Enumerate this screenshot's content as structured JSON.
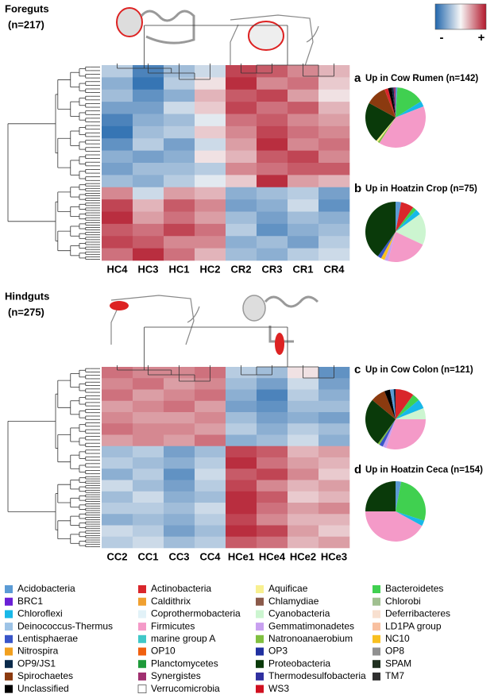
{
  "chart_data": [
    {
      "type": "heatmap",
      "title": "Foreguts",
      "subtitle": "(n=217)",
      "categories": [
        "HC4",
        "HC3",
        "HC1",
        "HC2",
        "CR2",
        "CR3",
        "CR1",
        "CR4"
      ],
      "zlim": [
        -1,
        1
      ],
      "values": [
        [
          -0.3,
          -0.8,
          -0.4,
          -0.2,
          0.8,
          0.7,
          0.5,
          0.3
        ],
        [
          -0.5,
          -0.9,
          -0.3,
          0.1,
          0.9,
          0.5,
          0.6,
          0.2
        ],
        [
          -0.4,
          -0.7,
          -0.5,
          0.3,
          0.7,
          0.8,
          0.4,
          0.1
        ],
        [
          -0.6,
          -0.6,
          -0.2,
          0.2,
          0.8,
          0.6,
          0.7,
          0.3
        ],
        [
          -0.8,
          -0.5,
          -0.4,
          -0.1,
          0.6,
          0.7,
          0.5,
          0.4
        ],
        [
          -0.9,
          -0.4,
          -0.3,
          0.2,
          0.5,
          0.8,
          0.6,
          0.5
        ],
        [
          -0.7,
          -0.3,
          -0.6,
          -0.2,
          0.4,
          0.9,
          0.5,
          0.6
        ],
        [
          -0.5,
          -0.6,
          -0.5,
          0.1,
          0.3,
          0.7,
          0.8,
          0.5
        ],
        [
          -0.6,
          -0.4,
          -0.4,
          -0.3,
          0.5,
          0.6,
          0.7,
          0.7
        ],
        [
          -0.4,
          -0.5,
          -0.3,
          -0.1,
          0.2,
          0.9,
          0.4,
          0.3
        ],
        [
          0.5,
          -0.2,
          0.4,
          0.3,
          -0.5,
          -0.4,
          -0.3,
          -0.6
        ],
        [
          0.8,
          0.3,
          0.7,
          0.5,
          -0.6,
          -0.5,
          -0.2,
          -0.7
        ],
        [
          0.9,
          0.4,
          0.6,
          0.4,
          -0.4,
          -0.6,
          -0.4,
          -0.5
        ],
        [
          0.7,
          0.6,
          0.8,
          0.6,
          -0.3,
          -0.7,
          -0.5,
          -0.4
        ],
        [
          0.8,
          0.7,
          0.5,
          0.5,
          -0.5,
          -0.4,
          -0.6,
          -0.3
        ],
        [
          0.6,
          0.9,
          0.6,
          0.3,
          -0.4,
          -0.5,
          -0.3,
          -0.2
        ]
      ]
    },
    {
      "type": "heatmap",
      "title": "Hindguts",
      "subtitle": "(n=275)",
      "categories": [
        "CC2",
        "CC1",
        "CC3",
        "CC4",
        "HCe1",
        "HCe4",
        "HCe2",
        "HCe3"
      ],
      "zlim": [
        -1,
        1
      ],
      "values": [
        [
          0.6,
          0.5,
          0.5,
          0.6,
          -0.3,
          -0.4,
          0.1,
          -0.7
        ],
        [
          0.5,
          0.6,
          0.4,
          0.5,
          -0.4,
          -0.6,
          -0.2,
          -0.6
        ],
        [
          0.6,
          0.4,
          0.5,
          0.6,
          -0.5,
          -0.8,
          -0.3,
          -0.5
        ],
        [
          0.4,
          0.5,
          0.6,
          0.4,
          -0.6,
          -0.7,
          -0.4,
          -0.4
        ],
        [
          0.5,
          0.4,
          0.4,
          0.5,
          -0.4,
          -0.6,
          -0.5,
          -0.6
        ],
        [
          0.6,
          0.5,
          0.5,
          0.4,
          -0.3,
          -0.5,
          -0.3,
          -0.4
        ],
        [
          0.4,
          0.5,
          0.4,
          0.6,
          -0.5,
          -0.4,
          -0.2,
          -0.5
        ],
        [
          -0.4,
          -0.3,
          -0.6,
          -0.4,
          0.8,
          0.7,
          0.3,
          0.4
        ],
        [
          -0.3,
          -0.4,
          -0.5,
          -0.3,
          0.9,
          0.6,
          0.4,
          0.3
        ],
        [
          -0.5,
          -0.3,
          -0.7,
          -0.2,
          0.7,
          0.8,
          0.5,
          0.2
        ],
        [
          -0.2,
          -0.4,
          -0.6,
          -0.3,
          0.8,
          0.5,
          0.3,
          0.4
        ],
        [
          -0.4,
          -0.2,
          -0.5,
          -0.4,
          0.9,
          0.7,
          0.2,
          0.3
        ],
        [
          -0.3,
          -0.3,
          -0.4,
          -0.2,
          0.9,
          0.6,
          0.4,
          0.5
        ],
        [
          -0.5,
          -0.4,
          -0.5,
          -0.3,
          0.8,
          0.5,
          0.3,
          0.3
        ],
        [
          -0.2,
          -0.3,
          -0.6,
          -0.4,
          0.9,
          0.8,
          0.4,
          0.2
        ],
        [
          -0.3,
          -0.2,
          -0.4,
          -0.3,
          0.7,
          0.6,
          0.3,
          0.4
        ]
      ]
    },
    {
      "type": "pie",
      "label": "a",
      "title": "Up in Cow Rumen (n=142)",
      "categories": [
        "Acidobacteria",
        "Bacteroidetes",
        "Chloroflexi",
        "Firmicutes",
        "Natronoanaerobium",
        "Aquificae",
        "Proteobacteria",
        "Spirochaetes",
        "Actinobacteria",
        "Unclassified",
        "OP9/JS1",
        "Synergistes"
      ],
      "values": [
        1,
        15,
        3,
        40,
        1,
        1,
        22,
        11,
        2,
        2,
        1,
        1
      ]
    },
    {
      "type": "pie",
      "label": "b",
      "title": "Up in Hoatzin Crop (n=75)",
      "categories": [
        "Acidobacteria",
        "Actinobacteria",
        "Bacteroidetes",
        "Chloroflexi",
        "Cyanobacteria",
        "Firmicutes",
        "Gemmatimonadetes",
        "NC10",
        "Lentisphaerae",
        "Proteobacteria"
      ],
      "values": [
        3,
        7,
        2,
        3,
        17,
        22,
        2,
        2,
        2,
        40
      ]
    },
    {
      "type": "pie",
      "label": "c",
      "title": "Up in Cow Colon (n=121)",
      "categories": [
        "Actinobacteria",
        "Bacteroidetes",
        "Chloroflexi",
        "Cyanobacteria",
        "Firmicutes",
        "Gemmatimonadetes",
        "Lentisphaerae",
        "Natronoanaerobium",
        "Proteobacteria",
        "Spirochaetes",
        "Unclassified",
        "Acidobacteria",
        "OP9/JS1"
      ],
      "values": [
        10,
        4,
        5,
        6,
        30,
        2,
        2,
        1,
        26,
        8,
        3,
        2,
        1
      ]
    },
    {
      "type": "pie",
      "label": "d",
      "title": "Up in Hoatzin Ceca (n=154)",
      "categories": [
        "Acidobacteria",
        "Bacteroidetes",
        "Chloroflexi",
        "Firmicutes",
        "Proteobacteria"
      ],
      "values": [
        3,
        27,
        3,
        42,
        25
      ]
    }
  ],
  "color_key": {
    "low": "-",
    "high": "+",
    "colors": [
      "#2166ac",
      "#f7f7f7",
      "#b2182b"
    ]
  },
  "legend": {
    "items": [
      {
        "name": "Acidobacteria",
        "color": "#5b9bd5"
      },
      {
        "name": "BRC1",
        "color": "#6a1fd6"
      },
      {
        "name": "Chloroflexi",
        "color": "#18b8e8"
      },
      {
        "name": "Deinococcus-Thermus",
        "color": "#9dc3e6"
      },
      {
        "name": "Lentisphaerae",
        "color": "#3955c8"
      },
      {
        "name": "Nitrospira",
        "color": "#f2a01e"
      },
      {
        "name": "OP9/JS1",
        "color": "#0a2a4a"
      },
      {
        "name": "Spirochaetes",
        "color": "#8b3a0f"
      },
      {
        "name": "Unclassified",
        "color": "#000000"
      },
      {
        "name": "Actinobacteria",
        "color": "#d9262b"
      },
      {
        "name": "Caldithrix",
        "color": "#f0a030"
      },
      {
        "name": "Coprothermobacteria",
        "color": "#e2f2f8"
      },
      {
        "name": "Firmicutes",
        "color": "#f49ac8"
      },
      {
        "name": "marine group A",
        "color": "#40c8c8"
      },
      {
        "name": "OP10",
        "color": "#f06010"
      },
      {
        "name": "Planctomycetes",
        "color": "#1e9a3a"
      },
      {
        "name": "Synergistes",
        "color": "#a03070"
      },
      {
        "name": "Verrucomicrobia",
        "color": "#ffffff"
      },
      {
        "name": "Aquificae",
        "color": "#f8f090"
      },
      {
        "name": "Chlamydiae",
        "color": "#8b5a4a"
      },
      {
        "name": "Cyanobacteria",
        "color": "#ccf5d0"
      },
      {
        "name": "Gemmatimonadetes",
        "color": "#c8a0f0"
      },
      {
        "name": "Natronoanaerobium",
        "color": "#80c040"
      },
      {
        "name": "OP3",
        "color": "#2030a0"
      },
      {
        "name": "Proteobacteria",
        "color": "#0a3a0a"
      },
      {
        "name": "Thermodesulfobacteria",
        "color": "#3030a0"
      },
      {
        "name": "WS3",
        "color": "#d01020"
      },
      {
        "name": "Bacteroidetes",
        "color": "#40d050"
      },
      {
        "name": "Chlorobi",
        "color": "#a0c090"
      },
      {
        "name": "Deferribacteres",
        "color": "#f8e0d0"
      },
      {
        "name": "LD1PA group",
        "color": "#f8c0a0"
      },
      {
        "name": "NC10",
        "color": "#f8c020"
      },
      {
        "name": "OP8",
        "color": "#909090"
      },
      {
        "name": "SPAM",
        "color": "#203020"
      },
      {
        "name": "TM7",
        "color": "#303030"
      }
    ]
  }
}
